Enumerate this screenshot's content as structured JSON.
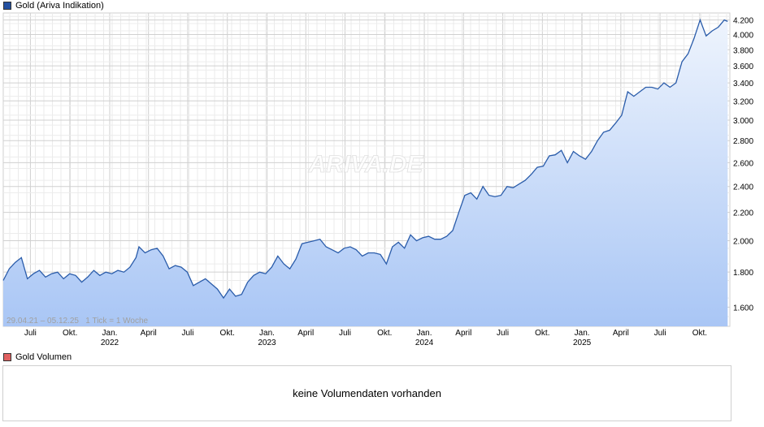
{
  "legend": {
    "price_label": "Gold (Ariva Indikation)",
    "volume_label": "Gold Volumen"
  },
  "colors": {
    "line": "#2a5caa",
    "fill_top": "#eef4fd",
    "fill_bottom": "#a9c6f5",
    "grid": "#d4d4d4",
    "volume_swatch": "#e06060",
    "price_swatch": "#2350a0"
  },
  "watermark": "ARIVA.DE",
  "range_note": "29.04.21 – 05.12.25   1 Tick = 1 Woche",
  "volume_message": "keine Volumendaten vorhanden",
  "chart_data": {
    "type": "area",
    "series": [
      {
        "name": "Gold (Ariva Indikation)",
        "x": [
          "2021-04-29",
          "2021-05-13",
          "2021-05-27",
          "2021-06-10",
          "2021-06-24",
          "2021-07-08",
          "2021-07-22",
          "2021-08-05",
          "2021-08-19",
          "2021-09-02",
          "2021-09-16",
          "2021-09-30",
          "2021-10-14",
          "2021-10-28",
          "2021-11-11",
          "2021-11-25",
          "2021-12-09",
          "2021-12-23",
          "2022-01-06",
          "2022-01-20",
          "2022-02-03",
          "2022-02-17",
          "2022-03-03",
          "2022-03-10",
          "2022-03-24",
          "2022-04-07",
          "2022-04-21",
          "2022-05-05",
          "2022-05-19",
          "2022-06-02",
          "2022-06-16",
          "2022-06-30",
          "2022-07-14",
          "2022-07-28",
          "2022-08-11",
          "2022-08-25",
          "2022-09-08",
          "2022-09-22",
          "2022-10-06",
          "2022-10-20",
          "2022-11-03",
          "2022-11-17",
          "2022-12-01",
          "2022-12-15",
          "2022-12-29",
          "2023-01-12",
          "2023-01-26",
          "2023-02-09",
          "2023-02-23",
          "2023-03-09",
          "2023-03-23",
          "2023-04-06",
          "2023-04-20",
          "2023-05-04",
          "2023-05-18",
          "2023-06-01",
          "2023-06-15",
          "2023-06-29",
          "2023-07-13",
          "2023-07-27",
          "2023-08-10",
          "2023-08-24",
          "2023-09-07",
          "2023-09-21",
          "2023-10-05",
          "2023-10-19",
          "2023-11-02",
          "2023-11-16",
          "2023-11-30",
          "2023-12-14",
          "2023-12-28",
          "2024-01-11",
          "2024-01-25",
          "2024-02-08",
          "2024-02-22",
          "2024-03-07",
          "2024-03-21",
          "2024-04-04",
          "2024-04-18",
          "2024-05-02",
          "2024-05-16",
          "2024-05-30",
          "2024-06-13",
          "2024-06-27",
          "2024-07-11",
          "2024-07-25",
          "2024-08-08",
          "2024-08-22",
          "2024-09-05",
          "2024-09-19",
          "2024-10-03",
          "2024-10-17",
          "2024-10-31",
          "2024-11-14",
          "2024-11-28",
          "2024-12-12",
          "2024-12-26",
          "2025-01-09",
          "2025-01-23",
          "2025-02-06",
          "2025-02-20",
          "2025-03-06",
          "2025-03-20",
          "2025-04-03",
          "2025-04-17",
          "2025-05-01",
          "2025-05-15",
          "2025-05-29",
          "2025-06-12",
          "2025-06-26",
          "2025-07-10",
          "2025-07-24",
          "2025-08-07",
          "2025-08-21",
          "2025-09-04",
          "2025-09-18",
          "2025-10-02",
          "2025-10-16",
          "2025-10-30",
          "2025-11-13",
          "2025-11-27",
          "2025-12-05"
        ],
        "values": [
          1750,
          1820,
          1860,
          1890,
          1760,
          1790,
          1810,
          1770,
          1790,
          1800,
          1760,
          1790,
          1780,
          1740,
          1770,
          1810,
          1780,
          1800,
          1790,
          1810,
          1800,
          1830,
          1890,
          1960,
          1920,
          1940,
          1950,
          1900,
          1820,
          1840,
          1830,
          1800,
          1720,
          1740,
          1760,
          1730,
          1700,
          1650,
          1700,
          1660,
          1670,
          1740,
          1780,
          1800,
          1790,
          1830,
          1900,
          1850,
          1820,
          1880,
          1980,
          1990,
          2000,
          2010,
          1960,
          1940,
          1920,
          1950,
          1960,
          1940,
          1900,
          1920,
          1920,
          1910,
          1850,
          1960,
          1990,
          1950,
          2040,
          2000,
          2020,
          2030,
          2010,
          2010,
          2030,
          2070,
          2200,
          2330,
          2350,
          2300,
          2400,
          2330,
          2320,
          2330,
          2400,
          2390,
          2420,
          2450,
          2500,
          2560,
          2570,
          2660,
          2670,
          2710,
          2600,
          2700,
          2660,
          2630,
          2700,
          2800,
          2880,
          2900,
          2970,
          3050,
          3300,
          3250,
          3300,
          3350,
          3350,
          3330,
          3400,
          3350,
          3400,
          3650,
          3750,
          3950,
          4200,
          3980,
          4050,
          4100,
          4200,
          4180
        ]
      }
    ],
    "x_ticks": [
      "Juli",
      "Okt.",
      "Jan.",
      "April",
      "Juli",
      "Okt.",
      "Jan.",
      "April",
      "Juli",
      "Okt.",
      "Jan.",
      "April",
      "Juli",
      "Okt.",
      "Jan.",
      "April",
      "Juli",
      "Okt."
    ],
    "x_tick_dates": [
      "2021-07-01",
      "2021-10-01",
      "2022-01-01",
      "2022-04-01",
      "2022-07-01",
      "2022-10-01",
      "2023-01-01",
      "2023-04-01",
      "2023-07-01",
      "2023-10-01",
      "2024-01-01",
      "2024-04-01",
      "2024-07-01",
      "2024-10-01",
      "2025-01-01",
      "2025-04-01",
      "2025-07-01",
      "2025-10-01"
    ],
    "year_labels": [
      "2022",
      "2023",
      "2024",
      "2025"
    ],
    "y_ticks": [
      "1.600",
      "1.800",
      "2.000",
      "2.200",
      "2.400",
      "2.600",
      "2.800",
      "3.000",
      "3.200",
      "3.400",
      "3.600",
      "3.800",
      "4.000",
      "4.200"
    ],
    "y_tick_values": [
      1600,
      1800,
      2000,
      2200,
      2400,
      2600,
      2800,
      3000,
      3200,
      3400,
      3600,
      3800,
      4000,
      4200
    ],
    "ylim": [
      1500,
      4300
    ],
    "xlim": [
      "2021-04-29",
      "2025-12-10"
    ],
    "y_scale": "log",
    "grid": true
  }
}
